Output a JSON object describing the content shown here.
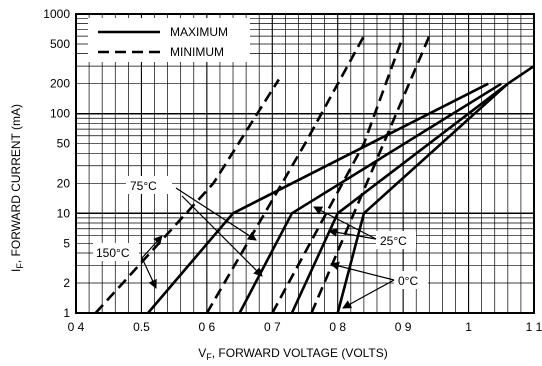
{
  "chart_data": {
    "type": "line",
    "xlabel_main": "F",
    "xlabel_sym": "V",
    "xlabel_rest": ", FORWARD VOLTAGE (VOLTS)",
    "ylabel_sym": "I",
    "ylabel_sub": "F",
    "ylabel_rest": ", FORWARD CURRENT (mA)",
    "x_ticks": [
      {
        "value": 0.4,
        "label": "0 4"
      },
      {
        "value": 0.5,
        "label": "0.5"
      },
      {
        "value": 0.6,
        "label": "0 6"
      },
      {
        "value": 0.7,
        "label": "0 7"
      },
      {
        "value": 0.8,
        "label": "0 8"
      },
      {
        "value": 0.9,
        "label": "0 9"
      },
      {
        "value": 1.0,
        "label": "1"
      },
      {
        "value": 1.1,
        "label": "1 1"
      }
    ],
    "y_ticks": [
      {
        "value": 1,
        "label": "1"
      },
      {
        "value": 2,
        "label": "2"
      },
      {
        "value": 5,
        "label": "5"
      },
      {
        "value": 10,
        "label": "10"
      },
      {
        "value": 20,
        "label": "20"
      },
      {
        "value": 50,
        "label": "50"
      },
      {
        "value": 100,
        "label": "100"
      },
      {
        "value": 200,
        "label": "200"
      },
      {
        "value": 500,
        "label": "500"
      },
      {
        "value": 1000,
        "label": "1000"
      }
    ],
    "xlim": [
      0.4,
      1.1
    ],
    "ylim": [
      1,
      1000
    ],
    "y_scale": "log",
    "grid": true,
    "legend": {
      "placement": "top-left",
      "entries": [
        {
          "label": "MAXIMUM",
          "style": "solid"
        },
        {
          "label": "MINIMUM",
          "style": "dashed"
        }
      ]
    },
    "series": [
      {
        "group": "150°C",
        "style": "solid",
        "x": [
          0.51,
          0.64,
          1.03
        ],
        "y": [
          1,
          10,
          200
        ]
      },
      {
        "group": "150°C",
        "style": "dashed",
        "x": [
          0.43,
          0.61,
          0.71
        ],
        "y": [
          1,
          20,
          220
        ]
      },
      {
        "group": "75°C",
        "style": "solid",
        "x": [
          0.65,
          0.73,
          1.05
        ],
        "y": [
          1,
          10,
          200
        ]
      },
      {
        "group": "75°C",
        "style": "dashed",
        "x": [
          0.6,
          0.75,
          0.84
        ],
        "y": [
          1,
          50,
          600
        ]
      },
      {
        "group": "25°C",
        "style": "solid",
        "x": [
          0.73,
          0.8,
          1.06,
          1.1
        ],
        "y": [
          1,
          10,
          200,
          300
        ]
      },
      {
        "group": "25°C",
        "style": "dashed",
        "x": [
          0.7,
          0.84,
          0.9
        ],
        "y": [
          1,
          50,
          600
        ]
      },
      {
        "group": "0°C",
        "style": "solid",
        "x": [
          0.8,
          0.84,
          1.06
        ],
        "y": [
          1,
          10,
          200
        ]
      },
      {
        "group": "0°C",
        "style": "dashed",
        "x": [
          0.76,
          0.87,
          0.94
        ],
        "y": [
          1,
          50,
          600
        ]
      }
    ],
    "annotations": [
      {
        "label": "75°C"
      },
      {
        "label": "150°C"
      },
      {
        "label": "25°C"
      },
      {
        "label": "0°C"
      }
    ]
  }
}
